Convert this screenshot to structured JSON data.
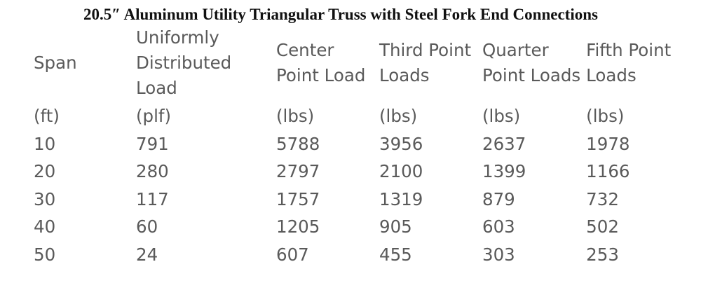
{
  "title": "20.5″ Aluminum Utility Triangular Truss with Steel Fork End Connections",
  "headers": [
    {
      "lines": [
        "Span"
      ]
    },
    {
      "lines": [
        "Uniformly",
        "Distributed",
        "Load"
      ]
    },
    {
      "lines": [
        "Center",
        "Point Load"
      ]
    },
    {
      "lines": [
        "Third Point",
        "Loads"
      ]
    },
    {
      "lines": [
        "Quarter",
        "Point Loads"
      ]
    },
    {
      "lines": [
        "Fifth Point",
        "Loads"
      ]
    }
  ],
  "units": [
    "(ft)",
    "(plf)",
    "(lbs)",
    "(lbs)",
    "(lbs)",
    "(lbs)"
  ],
  "rows": [
    [
      "10",
      "791",
      "5788",
      "3956",
      "2637",
      "1978"
    ],
    [
      "20",
      "280",
      "2797",
      "2100",
      "1399",
      "1166"
    ],
    [
      "30",
      "117",
      "1757",
      "1319",
      "879",
      "732"
    ],
    [
      "40",
      "60",
      "1205",
      "905",
      "603",
      "502"
    ],
    [
      "50",
      "24",
      "607",
      "455",
      "303",
      "253"
    ]
  ]
}
